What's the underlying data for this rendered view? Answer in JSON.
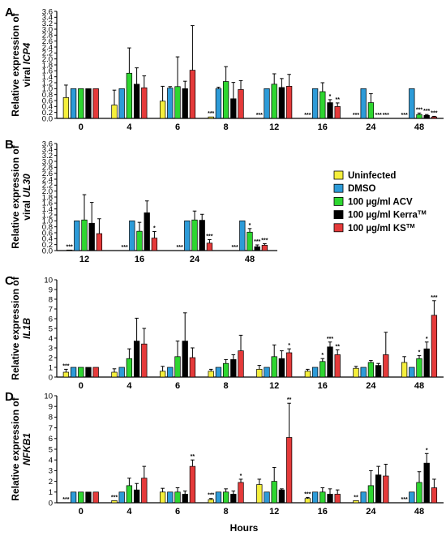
{
  "chart_data": {
    "type": "bar",
    "xlabel": "Hours",
    "series_names": [
      "Uninfected",
      "DMSO",
      "100 µg/ml ACV",
      "100 µg/ml Kerra",
      "100 µg/ml KS"
    ],
    "series_sup": [
      "",
      "",
      "",
      "TM",
      "TM"
    ],
    "colors": [
      "#f5ef3c",
      "#2d9bd8",
      "#2ed630",
      "#000000",
      "#e53a3a"
    ],
    "legend_position": "right of panel B",
    "panels": [
      {
        "label": "A",
        "ylabel_pre": "Relative expression of",
        "ylabel_main": "viral ",
        "ylabel_gene": "ICP4",
        "ylim": [
          0,
          3.6
        ],
        "yticks": [
          "0.0",
          "0.2",
          "0.4",
          "0.6",
          "0.8",
          "1.0",
          "1.2",
          "1.4",
          "1.6",
          "1.8",
          "2.0",
          "2.2",
          "2.4",
          "2.6",
          "2.8",
          "3.0",
          "3.2",
          "3.4",
          "3.6"
        ],
        "categories": [
          "0",
          "4",
          "6",
          "8",
          "12",
          "16",
          "24",
          "48"
        ],
        "groups": [
          [
            [
              0.7,
              0.42,
              ""
            ],
            [
              1,
              0,
              ""
            ],
            [
              1,
              0,
              ""
            ],
            [
              1,
              0,
              ""
            ],
            [
              1,
              0,
              ""
            ]
          ],
          [
            [
              0.45,
              0.5,
              ""
            ],
            [
              1,
              0,
              ""
            ],
            [
              1.52,
              0.85,
              ""
            ],
            [
              1.15,
              0.55,
              ""
            ],
            [
              1.03,
              0.4,
              ""
            ]
          ],
          [
            [
              0.58,
              0.5,
              ""
            ],
            [
              1.02,
              0.05,
              ""
            ],
            [
              1.07,
              1.0,
              ""
            ],
            [
              1.0,
              0.25,
              ""
            ],
            [
              1.62,
              1.5,
              ""
            ]
          ],
          [
            [
              0.05,
              0,
              "***"
            ],
            [
              1.0,
              0.05,
              ""
            ],
            [
              1.24,
              0.5,
              ""
            ],
            [
              0.66,
              0.55,
              ""
            ],
            [
              0.97,
              0.3,
              ""
            ]
          ],
          [
            [
              0,
              0,
              "***"
            ],
            [
              1.0,
              0,
              ""
            ],
            [
              1.15,
              0.35,
              ""
            ],
            [
              1.04,
              0.3,
              ""
            ],
            [
              1.08,
              0.4,
              ""
            ]
          ],
          [
            [
              0,
              0,
              "***"
            ],
            [
              1.0,
              0,
              ""
            ],
            [
              0.9,
              0.3,
              ""
            ],
            [
              0.53,
              0.1,
              "*"
            ],
            [
              0.4,
              0.12,
              "**"
            ]
          ],
          [
            [
              0,
              0,
              "***"
            ],
            [
              1.0,
              0,
              ""
            ],
            [
              0.53,
              0.3,
              ""
            ],
            [
              0,
              0,
              "***"
            ],
            [
              0,
              0,
              "***"
            ]
          ],
          [
            [
              0,
              0,
              "***"
            ],
            [
              1.0,
              0,
              ""
            ],
            [
              0.13,
              0.05,
              "***"
            ],
            [
              0.1,
              0.03,
              "***"
            ],
            [
              0.05,
              0.02,
              "***"
            ]
          ]
        ]
      },
      {
        "label": "B",
        "ylabel_pre": "Relative expression of",
        "ylabel_main": "viral ",
        "ylabel_gene": "UL30",
        "ylim": [
          0,
          3.6
        ],
        "yticks": [
          "0.0",
          "0.2",
          "0.4",
          "0.6",
          "0.8",
          "1.0",
          "1.2",
          "1.4",
          "1.6",
          "1.8",
          "2.0",
          "2.2",
          "2.4",
          "2.6",
          "2.8",
          "3.0",
          "3.2",
          "3.4",
          "3.6"
        ],
        "categories": [
          "12",
          "16",
          "24",
          "48"
        ],
        "groups": [
          [
            [
              0.02,
              0,
              "***"
            ],
            [
              1.0,
              0,
              ""
            ],
            [
              1.03,
              0.85,
              ""
            ],
            [
              0.92,
              0.7,
              ""
            ],
            [
              0.57,
              0.5,
              ""
            ]
          ],
          [
            [
              0,
              0,
              "***"
            ],
            [
              1.0,
              0,
              ""
            ],
            [
              0.65,
              0.3,
              ""
            ],
            [
              1.27,
              0.4,
              ""
            ],
            [
              0.42,
              0.22,
              "*"
            ]
          ],
          [
            [
              0,
              0,
              "***"
            ],
            [
              1.0,
              0,
              ""
            ],
            [
              1.03,
              0.3,
              ""
            ],
            [
              1.02,
              0.2,
              ""
            ],
            [
              0.25,
              0.12,
              "***"
            ]
          ],
          [
            [
              0,
              0,
              "***"
            ],
            [
              1.0,
              0,
              ""
            ],
            [
              0.62,
              0.12,
              "*"
            ],
            [
              0.13,
              0.06,
              "***"
            ],
            [
              0.18,
              0.05,
              "***"
            ]
          ]
        ]
      },
      {
        "label": "C",
        "ylabel_pre": "Relative expression of",
        "ylabel_main": "",
        "ylabel_gene": "IL1B",
        "ylim": [
          0,
          10
        ],
        "yticks": [
          "0",
          "1",
          "2",
          "3",
          "4",
          "5",
          "6",
          "7",
          "8",
          "9",
          "10"
        ],
        "categories": [
          "0",
          "4",
          "6",
          "8",
          "12",
          "16",
          "24",
          "48"
        ],
        "groups": [
          [
            [
              0.5,
              0.3,
              "***"
            ],
            [
              1.0,
              0,
              ""
            ],
            [
              1.0,
              0,
              ""
            ],
            [
              1.0,
              0,
              ""
            ],
            [
              1.0,
              0,
              ""
            ]
          ],
          [
            [
              0.5,
              0.35,
              ""
            ],
            [
              1.0,
              0,
              ""
            ],
            [
              1.9,
              1.0,
              ""
            ],
            [
              3.7,
              2.35,
              ""
            ],
            [
              3.4,
              1.6,
              ""
            ]
          ],
          [
            [
              0.6,
              0.5,
              ""
            ],
            [
              1.0,
              0,
              ""
            ],
            [
              2.1,
              1.6,
              ""
            ],
            [
              3.7,
              2.9,
              ""
            ],
            [
              2.0,
              1.0,
              ""
            ]
          ],
          [
            [
              0.6,
              0.2,
              ""
            ],
            [
              1.0,
              0,
              ""
            ],
            [
              1.4,
              0.4,
              ""
            ],
            [
              1.8,
              0.5,
              ""
            ],
            [
              2.7,
              1.6,
              ""
            ]
          ],
          [
            [
              0.8,
              0.4,
              ""
            ],
            [
              1.0,
              0,
              ""
            ],
            [
              2.1,
              1.2,
              ""
            ],
            [
              1.9,
              0.8,
              ""
            ],
            [
              2.5,
              0.4,
              "*"
            ]
          ],
          [
            [
              0.6,
              0.2,
              ""
            ],
            [
              1.0,
              0,
              ""
            ],
            [
              1.6,
              0.3,
              "*"
            ],
            [
              3.1,
              0.5,
              "***"
            ],
            [
              2.3,
              0.5,
              "**"
            ]
          ],
          [
            [
              0.9,
              0.2,
              ""
            ],
            [
              1.0,
              0,
              ""
            ],
            [
              1.5,
              0.2,
              ""
            ],
            [
              1.2,
              0.2,
              ""
            ],
            [
              2.3,
              2.3,
              ""
            ]
          ],
          [
            [
              1.5,
              0.6,
              ""
            ],
            [
              1.0,
              0,
              ""
            ],
            [
              1.9,
              0.3,
              "*"
            ],
            [
              2.9,
              0.7,
              "*"
            ],
            [
              6.35,
              1.5,
              "***"
            ]
          ]
        ]
      },
      {
        "label": "D",
        "ylabel_pre": "Relative expression of",
        "ylabel_main": "",
        "ylabel_gene": "NFKB1",
        "ylim": [
          0,
          10
        ],
        "yticks": [
          "0",
          "1",
          "2",
          "3",
          "4",
          "5",
          "6",
          "7",
          "8",
          "9",
          "10"
        ],
        "categories": [
          "0",
          "4",
          "6",
          "8",
          "12",
          "16",
          "24",
          "48"
        ],
        "groups": [
          [
            [
              0,
              0,
              "***"
            ],
            [
              1.0,
              0,
              ""
            ],
            [
              1.0,
              0,
              ""
            ],
            [
              1.0,
              0,
              ""
            ],
            [
              1.0,
              0,
              ""
            ]
          ],
          [
            [
              0.2,
              0,
              "***"
            ],
            [
              1.0,
              0,
              ""
            ],
            [
              1.6,
              0.7,
              ""
            ],
            [
              1.2,
              0.6,
              ""
            ],
            [
              2.3,
              1.1,
              ""
            ]
          ],
          [
            [
              1.0,
              0.35,
              ""
            ],
            [
              1.0,
              0,
              ""
            ],
            [
              1.0,
              0.4,
              ""
            ],
            [
              0.8,
              0.3,
              ""
            ],
            [
              3.4,
              0.6,
              "**"
            ]
          ],
          [
            [
              0.3,
              0.1,
              "***"
            ],
            [
              1.0,
              0,
              ""
            ],
            [
              1.0,
              0.3,
              ""
            ],
            [
              0.8,
              0.3,
              ""
            ],
            [
              1.9,
              0.3,
              "*"
            ]
          ],
          [
            [
              1.7,
              0.5,
              ""
            ],
            [
              1.0,
              0,
              ""
            ],
            [
              2.0,
              1.3,
              ""
            ],
            [
              1.2,
              0.1,
              ""
            ],
            [
              6.1,
              3.2,
              "**"
            ]
          ],
          [
            [
              0.4,
              0.1,
              "***"
            ],
            [
              1.0,
              0,
              ""
            ],
            [
              1.0,
              0.4,
              ""
            ],
            [
              0.8,
              0.5,
              ""
            ],
            [
              0.8,
              0.4,
              ""
            ]
          ],
          [
            [
              0.2,
              0,
              "**"
            ],
            [
              1.0,
              0,
              ""
            ],
            [
              1.6,
              1.4,
              ""
            ],
            [
              2.6,
              0.8,
              ""
            ],
            [
              2.5,
              1.1,
              ""
            ]
          ],
          [
            [
              0,
              0,
              "***"
            ],
            [
              1.0,
              0,
              ""
            ],
            [
              1.9,
              1.0,
              ""
            ],
            [
              3.7,
              0.9,
              "*"
            ],
            [
              1.4,
              0.8,
              ""
            ]
          ]
        ]
      }
    ]
  }
}
